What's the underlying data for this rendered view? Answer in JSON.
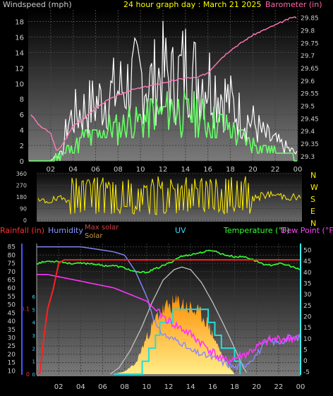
{
  "chart_data": [
    {
      "type": "line",
      "title": "24 hour graph day : March 21 2025",
      "ylabel_left": "Windspeed (mph)",
      "ylabel_right": "Barometer (in)",
      "x_ticks": [
        "02",
        "04",
        "06",
        "08",
        "10",
        "12",
        "14",
        "16",
        "18",
        "20",
        "22",
        "00"
      ],
      "x_range_hours": [
        0,
        24
      ],
      "y_left_ticks": [
        0,
        2,
        4,
        6,
        8,
        10,
        12,
        14,
        16,
        18
      ],
      "y_left_range": [
        0,
        19.5
      ],
      "y_right_ticks": [
        29.3,
        29.35,
        29.4,
        29.45,
        29.5,
        29.55,
        29.6,
        29.65,
        29.7,
        29.75,
        29.8,
        29.85
      ],
      "y_right_range": [
        29.28,
        29.88
      ],
      "grid": true,
      "colors": {
        "gust": "#ffffff",
        "wind": "#66ff66",
        "barometer": "#ff7ab8",
        "text": "#dddddd",
        "title": "#ffff00",
        "baro_label": "#ff66aa"
      },
      "series": [
        {
          "name": "Windspeed (mph)",
          "key": "gust",
          "hours": [
            0,
            1,
            2,
            2.5,
            3,
            3.5,
            4,
            5,
            6,
            7,
            8,
            9,
            10,
            11,
            12,
            13,
            14,
            15,
            16,
            17,
            18,
            19,
            20,
            21,
            22,
            23,
            24
          ],
          "values": [
            0,
            0,
            0,
            1,
            1,
            6,
            7,
            8,
            9,
            10,
            11,
            12,
            13,
            12,
            14,
            12,
            15,
            13,
            13,
            11,
            9,
            7,
            6,
            4,
            3,
            2,
            1
          ]
        },
        {
          "name": "wind_avg",
          "hours": [
            0,
            1,
            2,
            3,
            4,
            5,
            6,
            7,
            8,
            9,
            10,
            11,
            12,
            13,
            14,
            15,
            16,
            17,
            18,
            19,
            20,
            21,
            22,
            23,
            24
          ],
          "values": [
            0,
            0,
            0,
            1,
            2,
            3,
            3,
            4,
            4,
            5,
            5,
            6,
            6,
            7,
            6,
            6,
            5,
            5,
            4,
            3,
            2,
            2,
            1,
            1,
            0
          ]
        },
        {
          "name": "Barometer (in)",
          "key": "barometer",
          "hours": [
            0,
            1,
            2,
            2.5,
            3,
            4,
            5,
            6,
            7,
            8,
            9,
            10,
            11,
            12,
            13,
            14,
            15,
            16,
            17,
            18,
            19,
            20,
            21,
            22,
            23,
            23.5,
            24
          ],
          "values": [
            29.48,
            29.42,
            29.39,
            29.32,
            29.34,
            29.42,
            29.45,
            29.49,
            29.52,
            29.54,
            29.56,
            29.57,
            29.58,
            29.59,
            29.6,
            29.61,
            29.61,
            29.63,
            29.68,
            29.72,
            29.75,
            29.78,
            29.8,
            29.82,
            29.84,
            29.85,
            29.85
          ]
        }
      ]
    },
    {
      "type": "line",
      "title": "",
      "y_left_ticks": [
        0,
        90,
        180,
        270,
        360
      ],
      "y_range": [
        0,
        360
      ],
      "x_range_hours": [
        0,
        24
      ],
      "compass_labels": [
        "N",
        "W",
        "S",
        "E",
        "N"
      ],
      "colors": {
        "line": "#ffee00",
        "compass": "#ffee00"
      },
      "series": [
        {
          "name": "wind_direction",
          "hours": [
            0,
            1,
            2,
            3,
            3.5,
            4,
            5,
            6,
            7,
            8,
            9,
            10,
            11,
            12,
            13,
            14,
            15,
            16,
            17,
            18,
            19,
            20,
            21,
            22,
            23,
            24
          ],
          "values": [
            140,
            150,
            160,
            170,
            300,
            60,
            290,
            50,
            300,
            70,
            310,
            60,
            300,
            80,
            290,
            100,
            300,
            80,
            260,
            150,
            140,
            180,
            200,
            190,
            180,
            170
          ]
        }
      ]
    },
    {
      "type": "line",
      "title": "",
      "labels": {
        "rainfall": "Rainfall (in)",
        "humidity": "Humidity",
        "max_solar": "Max solar",
        "solar": "Solar",
        "uv": "UV",
        "temperature": "Temperature (°F)",
        "dew_point": "Dew Point (°F)"
      },
      "x_ticks": [
        "02",
        "04",
        "06",
        "08",
        "10",
        "12",
        "14",
        "16",
        "18",
        "20",
        "22",
        "00"
      ],
      "x_range_hours": [
        0,
        24
      ],
      "y_humidity_ticks": [
        10,
        15,
        20,
        25,
        30,
        35,
        40,
        45,
        50,
        55,
        60,
        65,
        70,
        75,
        80,
        85
      ],
      "y_humidity_range": [
        8,
        87
      ],
      "y_rain_ticks": [
        "0",
        "0.1",
        ""
      ],
      "y_rain_range": [
        0,
        0.2
      ],
      "y_temp_ticks": [
        -5,
        0,
        5,
        10,
        15,
        20,
        25,
        30,
        35,
        40,
        45,
        50
      ],
      "y_temp_range": [
        -6,
        53
      ],
      "y_uv_ticks": [
        0,
        1,
        2,
        3,
        4,
        5,
        6
      ],
      "colors": {
        "rainfall": "#ff2020",
        "humidity": "#8888ff",
        "max_solar": "#c0c0c0",
        "solar": "#ffaa00",
        "uv": "#22dddd",
        "temperature": "#33ff33",
        "dew_point": "#ff33ff",
        "label_rain": "#ff3333",
        "label_hum": "#8899ff",
        "label_maxsolar": "#cc4444",
        "label_solar": "#cc9944",
        "label_uv": "#33ddff",
        "label_temp": "#33ff33",
        "label_dew": "#ff44ff"
      },
      "series": [
        {
          "name": "Rainfall (in)",
          "key": "rainfall",
          "hours": [
            0,
            0.3,
            0.6,
            1,
            1.5,
            2,
            2.5,
            3,
            24
          ],
          "values": [
            0,
            0.002,
            0.05,
            0.1,
            0.13,
            0.17,
            0.175,
            0.175,
            0.175
          ]
        },
        {
          "name": "Humidity",
          "key": "humidity",
          "hours": [
            0,
            2,
            4,
            5,
            6,
            7,
            8,
            9,
            10,
            10.5,
            11,
            12,
            13,
            14,
            15,
            16,
            17,
            18,
            19,
            20,
            21,
            22,
            23,
            24
          ],
          "values": [
            85,
            85,
            85,
            84,
            83,
            82,
            80,
            70,
            55,
            45,
            35,
            30,
            28,
            22,
            20,
            18,
            15,
            12,
            14,
            20,
            28,
            27,
            30,
            30
          ]
        },
        {
          "name": "Temperature (°F)",
          "key": "temperature",
          "hours": [
            0,
            1,
            2,
            3,
            4,
            5,
            6,
            7,
            8,
            9,
            10,
            11,
            12,
            13,
            14,
            15,
            16,
            17,
            18,
            19,
            20,
            21,
            22,
            23,
            24
          ],
          "values": [
            44,
            45,
            45,
            44,
            44,
            44,
            43,
            43,
            42,
            40,
            40,
            42,
            44,
            47,
            48,
            49,
            50,
            48,
            47,
            47,
            45,
            43,
            44,
            43,
            41
          ]
        },
        {
          "name": "Dew Point (°F)",
          "key": "dew_point",
          "hours": [
            0,
            1,
            2,
            3,
            4,
            5,
            6,
            7,
            8,
            9,
            10,
            11,
            12,
            13,
            14,
            15,
            16,
            17,
            18,
            19,
            20,
            21,
            22,
            23,
            24
          ],
          "values": [
            39,
            39,
            38,
            37,
            36,
            35,
            34,
            33,
            31,
            29,
            27,
            22,
            18,
            15,
            12,
            8,
            4,
            0,
            1,
            3,
            6,
            9,
            10,
            10,
            11
          ]
        },
        {
          "name": "Max solar",
          "key": "max_solar",
          "hours": [
            6.7,
            7.5,
            8.5,
            9.5,
            10.5,
            11.5,
            12.5,
            13.2,
            14,
            15,
            16,
            17,
            18,
            18.8,
            19.2
          ],
          "values": [
            0,
            0.05,
            0.18,
            0.35,
            0.55,
            0.72,
            0.8,
            0.82,
            0.8,
            0.7,
            0.55,
            0.38,
            0.2,
            0.05,
            0
          ]
        },
        {
          "name": "Solar",
          "key": "solar",
          "hours": [
            7,
            8,
            9,
            10,
            11,
            12,
            13,
            14,
            15,
            15.5,
            16,
            17,
            18
          ],
          "values": [
            0,
            0.02,
            0.08,
            0.28,
            0.45,
            0.52,
            0.55,
            0.5,
            0.45,
            0.4,
            0.3,
            0.12,
            0.0
          ]
        },
        {
          "name": "UV",
          "key": "uv",
          "hours": [
            7,
            8,
            9,
            9.6,
            10.2,
            10.8,
            11.2,
            11.8,
            12.4,
            13,
            14,
            15,
            15.6,
            16.2,
            16.8,
            17.4,
            18,
            18.5
          ],
          "values": [
            0,
            0,
            0,
            1,
            2,
            3,
            4,
            4,
            5,
            5,
            5,
            5,
            4,
            3,
            2,
            2,
            1,
            0
          ]
        }
      ]
    }
  ]
}
